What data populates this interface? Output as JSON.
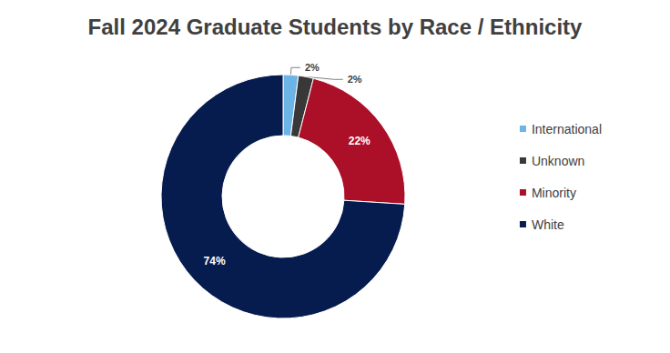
{
  "chart_data": {
    "type": "pie",
    "title": "Fall 2024 Graduate Students by Race / Ethnicity",
    "categories": [
      "International",
      "Unknown",
      "Minority",
      "White"
    ],
    "values": [
      2,
      2,
      22,
      74
    ],
    "value_labels": [
      "2%",
      "2%",
      "22%",
      "74%"
    ],
    "colors": [
      "#6cb4e6",
      "#383838",
      "#ac1028",
      "#061c4f"
    ],
    "legend": "right",
    "data_labels": true
  }
}
